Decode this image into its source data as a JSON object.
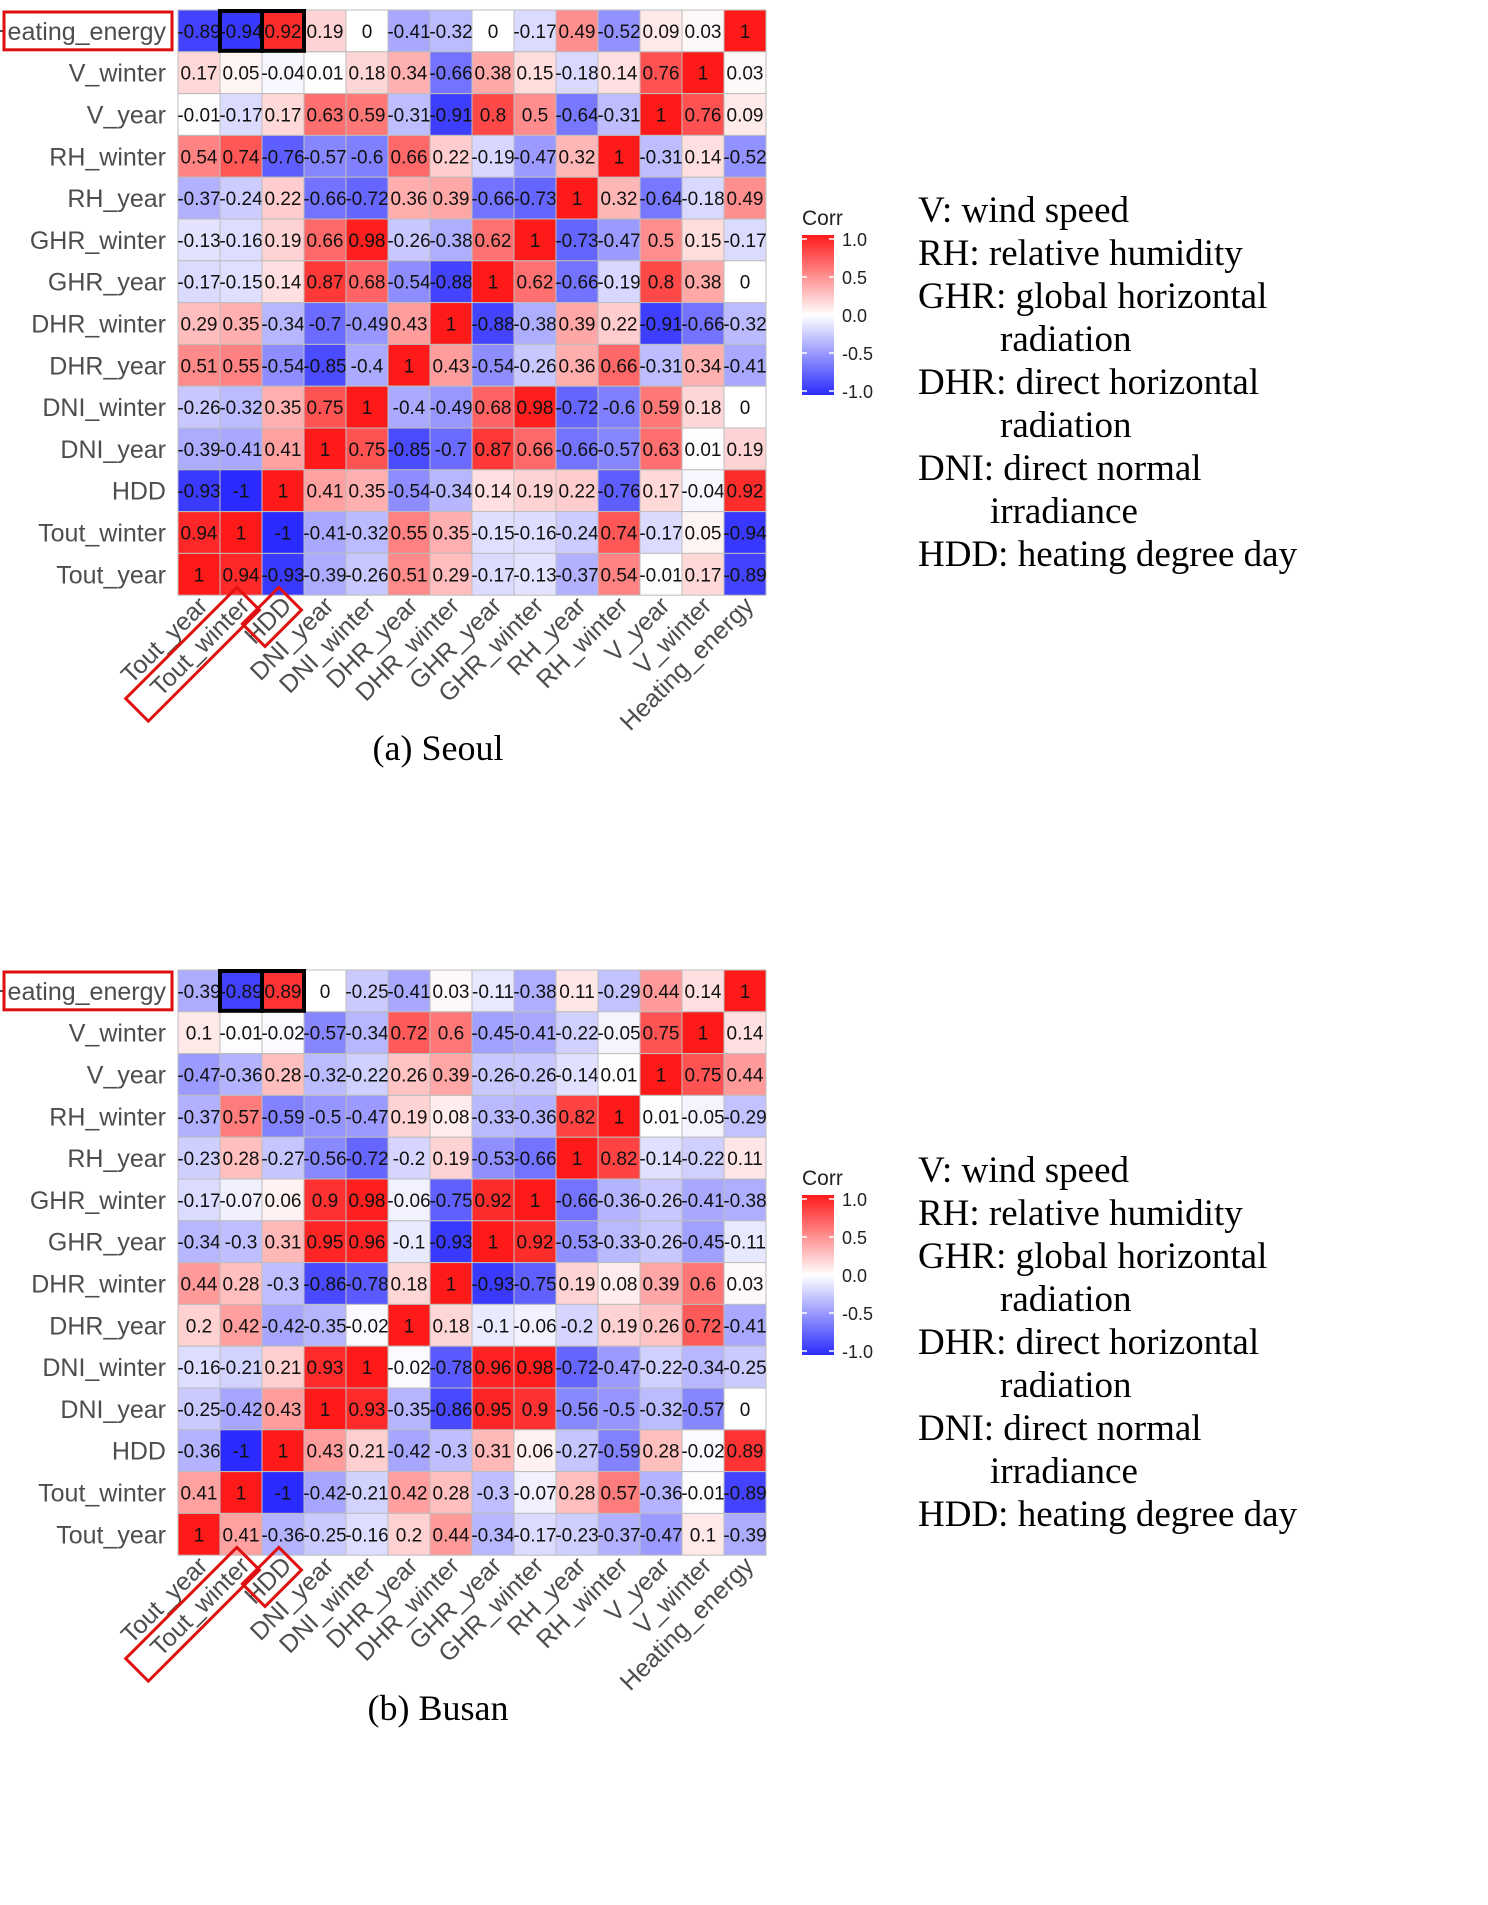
{
  "colors": {
    "low": "#2b2bff",
    "mid": "#ffffff",
    "high": "#ff1a1a",
    "grid": "#bdbdbd",
    "highlight_red": "#e01010",
    "highlight_black": "#000000"
  },
  "chart_data": [
    {
      "type": "heatmap",
      "caption": "(a) Seoul",
      "legend": {
        "title": "Corr",
        "ticks": [
          "1.0",
          "0.5",
          "0.0",
          "-0.5",
          "-1.0"
        ],
        "range": [
          -1,
          1
        ]
      },
      "rows": [
        "Heating_energy",
        "V_winter",
        "V_year",
        "RH_winter",
        "RH_year",
        "GHR_winter",
        "GHR_year",
        "DHR_winter",
        "DHR_year",
        "DNI_winter",
        "DNI_year",
        "HDD",
        "Tout_winter",
        "Tout_year"
      ],
      "columns": [
        "Tout_year",
        "Tout_winter",
        "HDD",
        "DNI_year",
        "DNI_winter",
        "DHR_year",
        "DHR_winter",
        "GHR_year",
        "GHR_winter",
        "RH_year",
        "RH_winter",
        "V_year",
        "V_winter",
        "Heating_energy"
      ],
      "values": [
        [
          "-0.89",
          "-0.94",
          "0.92",
          "0.19",
          "0",
          "-0.41",
          "-0.32",
          "0",
          "-0.17",
          "0.49",
          "-0.52",
          "0.09",
          "0.03",
          "1"
        ],
        [
          "0.17",
          "0.05",
          "-0.04",
          "0.01",
          "0.18",
          "0.34",
          "-0.66",
          "0.38",
          "0.15",
          "-0.18",
          "0.14",
          "0.76",
          "1",
          "0.03"
        ],
        [
          "-0.01",
          "-0.17",
          "0.17",
          "0.63",
          "0.59",
          "-0.31",
          "-0.91",
          "0.8",
          "0.5",
          "-0.64",
          "-0.31",
          "1",
          "0.76",
          "0.09"
        ],
        [
          "0.54",
          "0.74",
          "-0.76",
          "-0.57",
          "-0.6",
          "0.66",
          "0.22",
          "-0.19",
          "-0.47",
          "0.32",
          "1",
          "-0.31",
          "0.14",
          "-0.52"
        ],
        [
          "-0.37",
          "-0.24",
          "0.22",
          "-0.66",
          "-0.72",
          "0.36",
          "0.39",
          "-0.66",
          "-0.73",
          "1",
          "0.32",
          "-0.64",
          "-0.18",
          "0.49"
        ],
        [
          "-0.13",
          "-0.16",
          "0.19",
          "0.66",
          "0.98",
          "-0.26",
          "-0.38",
          "0.62",
          "1",
          "-0.73",
          "-0.47",
          "0.5",
          "0.15",
          "-0.17"
        ],
        [
          "-0.17",
          "-0.15",
          "0.14",
          "0.87",
          "0.68",
          "-0.54",
          "-0.88",
          "1",
          "0.62",
          "-0.66",
          "-0.19",
          "0.8",
          "0.38",
          "0"
        ],
        [
          "0.29",
          "0.35",
          "-0.34",
          "-0.7",
          "-0.49",
          "0.43",
          "1",
          "-0.88",
          "-0.38",
          "0.39",
          "0.22",
          "-0.91",
          "-0.66",
          "-0.32"
        ],
        [
          "0.51",
          "0.55",
          "-0.54",
          "-0.85",
          "-0.4",
          "1",
          "0.43",
          "-0.54",
          "-0.26",
          "0.36",
          "0.66",
          "-0.31",
          "0.34",
          "-0.41"
        ],
        [
          "-0.26",
          "-0.32",
          "0.35",
          "0.75",
          "1",
          "-0.4",
          "-0.49",
          "0.68",
          "0.98",
          "-0.72",
          "-0.6",
          "0.59",
          "0.18",
          "0"
        ],
        [
          "-0.39",
          "-0.41",
          "0.41",
          "1",
          "0.75",
          "-0.85",
          "-0.7",
          "0.87",
          "0.66",
          "-0.66",
          "-0.57",
          "0.63",
          "0.01",
          "0.19"
        ],
        [
          "-0.93",
          "-1",
          "1",
          "0.41",
          "0.35",
          "-0.54",
          "-0.34",
          "0.14",
          "0.19",
          "0.22",
          "-0.76",
          "0.17",
          "-0.04",
          "0.92"
        ],
        [
          "0.94",
          "1",
          "-1",
          "-0.41",
          "-0.32",
          "0.55",
          "0.35",
          "-0.15",
          "-0.16",
          "-0.24",
          "0.74",
          "-0.17",
          "0.05",
          "-0.94"
        ],
        [
          "1",
          "0.94",
          "-0.93",
          "-0.39",
          "-0.26",
          "0.51",
          "0.29",
          "-0.17",
          "-0.13",
          "-0.37",
          "0.54",
          "-0.01",
          "0.17",
          "-0.89"
        ]
      ],
      "highlighted_rows": [
        "Heating_energy"
      ],
      "highlighted_columns": [
        "Tout_winter",
        "HDD"
      ],
      "boxed_cells": [
        "Heating_energy|Tout_winter",
        "Heating_energy|HDD"
      ],
      "definitions": [
        "V: wind speed",
        "RH: relative humidity",
        "GHR: global horizontal",
        "radiation",
        "DHR: direct horizontal",
        "radiation",
        "DNI: direct normal",
        "irradiance",
        "HDD: heating degree day"
      ]
    },
    {
      "type": "heatmap",
      "caption": "(b) Busan",
      "legend": {
        "title": "Corr",
        "ticks": [
          "1.0",
          "0.5",
          "0.0",
          "-0.5",
          "-1.0"
        ],
        "range": [
          -1,
          1
        ]
      },
      "rows": [
        "Heating_energy",
        "V_winter",
        "V_year",
        "RH_winter",
        "RH_year",
        "GHR_winter",
        "GHR_year",
        "DHR_winter",
        "DHR_year",
        "DNI_winter",
        "DNI_year",
        "HDD",
        "Tout_winter",
        "Tout_year"
      ],
      "columns": [
        "Tout_year",
        "Tout_winter",
        "HDD",
        "DNI_year",
        "DNI_winter",
        "DHR_year",
        "DHR_winter",
        "GHR_year",
        "GHR_winter",
        "RH_year",
        "RH_winter",
        "V_year",
        "V_winter",
        "Heating_energy"
      ],
      "values": [
        [
          "-0.39",
          "-0.89",
          "0.89",
          "0",
          "-0.25",
          "-0.41",
          "0.03",
          "-0.11",
          "-0.38",
          "0.11",
          "-0.29",
          "0.44",
          "0.14",
          "1"
        ],
        [
          "0.1",
          "-0.01",
          "-0.02",
          "-0.57",
          "-0.34",
          "0.72",
          "0.6",
          "-0.45",
          "-0.41",
          "-0.22",
          "-0.05",
          "0.75",
          "1",
          "0.14"
        ],
        [
          "-0.47",
          "-0.36",
          "0.28",
          "-0.32",
          "-0.22",
          "0.26",
          "0.39",
          "-0.26",
          "-0.26",
          "-0.14",
          "0.01",
          "1",
          "0.75",
          "0.44"
        ],
        [
          "-0.37",
          "0.57",
          "-0.59",
          "-0.5",
          "-0.47",
          "0.19",
          "0.08",
          "-0.33",
          "-0.36",
          "0.82",
          "1",
          "0.01",
          "-0.05",
          "-0.29"
        ],
        [
          "-0.23",
          "0.28",
          "-0.27",
          "-0.56",
          "-0.72",
          "-0.2",
          "0.19",
          "-0.53",
          "-0.66",
          "1",
          "0.82",
          "-0.14",
          "-0.22",
          "0.11"
        ],
        [
          "-0.17",
          "-0.07",
          "0.06",
          "0.9",
          "0.98",
          "-0.06",
          "-0.75",
          "0.92",
          "1",
          "-0.66",
          "-0.36",
          "-0.26",
          "-0.41",
          "-0.38"
        ],
        [
          "-0.34",
          "-0.3",
          "0.31",
          "0.95",
          "0.96",
          "-0.1",
          "-0.93",
          "1",
          "0.92",
          "-0.53",
          "-0.33",
          "-0.26",
          "-0.45",
          "-0.11"
        ],
        [
          "0.44",
          "0.28",
          "-0.3",
          "-0.86",
          "-0.78",
          "0.18",
          "1",
          "-0.93",
          "-0.75",
          "0.19",
          "0.08",
          "0.39",
          "0.6",
          "0.03"
        ],
        [
          "0.2",
          "0.42",
          "-0.42",
          "-0.35",
          "-0.02",
          "1",
          "0.18",
          "-0.1",
          "-0.06",
          "-0.2",
          "0.19",
          "0.26",
          "0.72",
          "-0.41"
        ],
        [
          "-0.16",
          "-0.21",
          "0.21",
          "0.93",
          "1",
          "-0.02",
          "-0.78",
          "0.96",
          "0.98",
          "-0.72",
          "-0.47",
          "-0.22",
          "-0.34",
          "-0.25"
        ],
        [
          "-0.25",
          "-0.42",
          "0.43",
          "1",
          "0.93",
          "-0.35",
          "-0.86",
          "0.95",
          "0.9",
          "-0.56",
          "-0.5",
          "-0.32",
          "-0.57",
          "0"
        ],
        [
          "-0.36",
          "-1",
          "1",
          "0.43",
          "0.21",
          "-0.42",
          "-0.3",
          "0.31",
          "0.06",
          "-0.27",
          "-0.59",
          "0.28",
          "-0.02",
          "0.89"
        ],
        [
          "0.41",
          "1",
          "-1",
          "-0.42",
          "-0.21",
          "0.42",
          "0.28",
          "-0.3",
          "-0.07",
          "0.28",
          "0.57",
          "-0.36",
          "-0.01",
          "-0.89"
        ],
        [
          "1",
          "0.41",
          "-0.36",
          "-0.25",
          "-0.16",
          "0.2",
          "0.44",
          "-0.34",
          "-0.17",
          "-0.23",
          "-0.37",
          "-0.47",
          "0.1",
          "-0.39"
        ]
      ],
      "highlighted_rows": [
        "Heating_energy"
      ],
      "highlighted_columns": [
        "Tout_winter",
        "HDD"
      ],
      "boxed_cells": [
        "Heating_energy|Tout_winter",
        "Heating_energy|HDD"
      ],
      "definitions": [
        "V: wind speed",
        "RH: relative humidity",
        "GHR: global horizontal",
        "radiation",
        "DHR: direct horizontal",
        "radiation",
        "DNI: direct normal",
        "irradiance",
        "HDD: heating degree day"
      ]
    }
  ]
}
